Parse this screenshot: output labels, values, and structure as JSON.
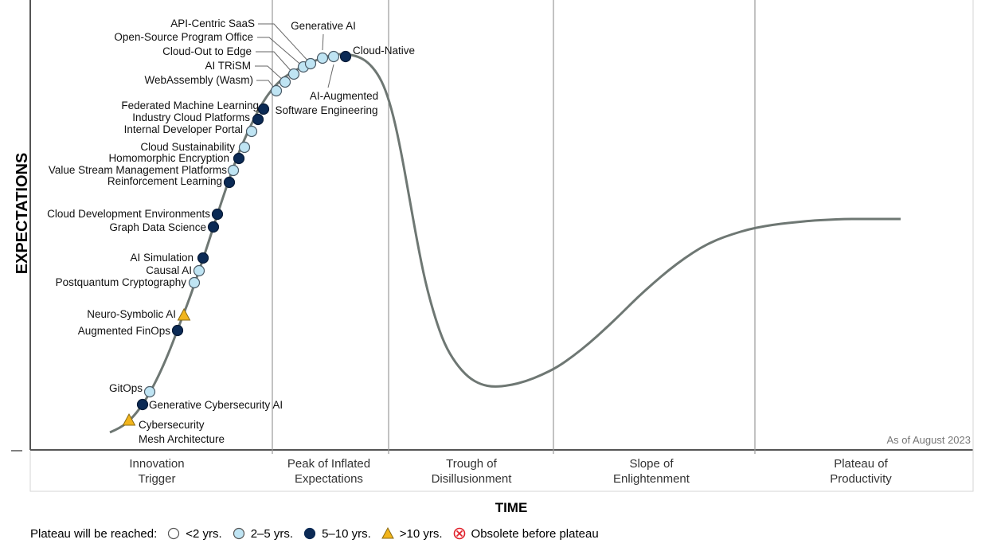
{
  "chart_data": {
    "type": "scatter",
    "title": "",
    "xlabel": "TIME",
    "ylabel": "EXPECTATIONS",
    "note": "As of August 2023",
    "phases": [
      {
        "line1": "Innovation",
        "line2": "Trigger"
      },
      {
        "line1": "Peak of Inflated",
        "line2": "Expectations"
      },
      {
        "line1": "Trough of",
        "line2": "Disillusionment"
      },
      {
        "line1": "Slope of",
        "line2": "Enlightenment"
      },
      {
        "line1": "Plateau of",
        "line2": "Productivity"
      }
    ],
    "legend": {
      "title": "Plateau will be reached:",
      "items": [
        {
          "key": "lt2",
          "label": "<2 yrs."
        },
        {
          "key": "2to5",
          "label": "2–5 yrs."
        },
        {
          "key": "5to10",
          "label": "5–10 yrs."
        },
        {
          "key": "gt10",
          "label": ">10 yrs."
        },
        {
          "key": "obsolete",
          "label": "Obsolete before plateau"
        }
      ]
    },
    "technologies": [
      {
        "name": "Cybersecurity Mesh Architecture",
        "plateau": "gt10"
      },
      {
        "name": "Generative Cybersecurity AI",
        "plateau": "5to10"
      },
      {
        "name": "GitOps",
        "plateau": "2to5"
      },
      {
        "name": "Augmented FinOps",
        "plateau": "5to10"
      },
      {
        "name": "Neuro-Symbolic AI",
        "plateau": "gt10"
      },
      {
        "name": "Postquantum Cryptography",
        "plateau": "2to5"
      },
      {
        "name": "Causal AI",
        "plateau": "2to5"
      },
      {
        "name": "AI Simulation",
        "plateau": "5to10"
      },
      {
        "name": "Graph Data Science",
        "plateau": "5to10"
      },
      {
        "name": "Cloud Development Environments",
        "plateau": "5to10"
      },
      {
        "name": "Reinforcement Learning",
        "plateau": "5to10"
      },
      {
        "name": "Value Stream Management Platforms",
        "plateau": "2to5"
      },
      {
        "name": "Homomorphic Encryption",
        "plateau": "5to10"
      },
      {
        "name": "Cloud Sustainability",
        "plateau": "2to5"
      },
      {
        "name": "Internal Developer Portal",
        "plateau": "2to5"
      },
      {
        "name": "Industry Cloud Platforms",
        "plateau": "5to10"
      },
      {
        "name": "Federated Machine Learning",
        "plateau": "5to10"
      },
      {
        "name": "WebAssembly (Wasm)",
        "plateau": "2to5"
      },
      {
        "name": "AI TRiSM",
        "plateau": "2to5"
      },
      {
        "name": "Cloud-Out to Edge",
        "plateau": "2to5"
      },
      {
        "name": "Open-Source Program Office",
        "plateau": "2to5"
      },
      {
        "name": "API-Centric SaaS",
        "plateau": "2to5"
      },
      {
        "name": "Generative AI",
        "plateau": "2to5"
      },
      {
        "name": "AI-Augmented Software Engineering",
        "plateau": "2to5"
      },
      {
        "name": "Cloud-Native",
        "plateau": "5to10"
      }
    ],
    "colors": {
      "curve": "#6e7773",
      "lt2": "#ffffff",
      "2to5": "#bfe4f3",
      "5to10": "#0b2a55",
      "gt10": "#f2b51c",
      "obsolete": "#e0202a",
      "grid": "#9a9a9a",
      "axis": "#555555"
    }
  }
}
